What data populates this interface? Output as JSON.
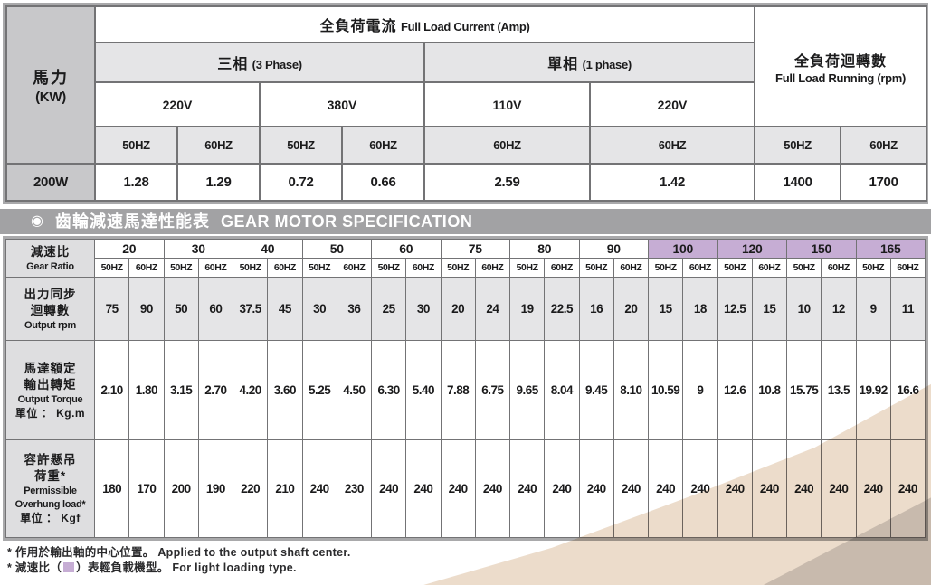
{
  "motor_table": {
    "power_label_zh": "馬力",
    "power_label_en": "(KW)",
    "full_load_current_zh": "全負荷電流",
    "full_load_current_en": "Full Load Current (Amp)",
    "three_phase_zh": "三相",
    "three_phase_en": "(3 Phase)",
    "single_phase_zh": "單相",
    "single_phase_en": "(1 phase)",
    "full_load_running_zh": "全負荷迴轉數",
    "full_load_running_en": "Full Load Running (rpm)",
    "voltage_220_3ph": "220V",
    "voltage_380_3ph": "380V",
    "voltage_110_1ph": "110V",
    "voltage_220_1ph": "220V",
    "hz": [
      "50HZ",
      "60HZ",
      "50HZ",
      "60HZ",
      "60HZ",
      "60HZ",
      "50HZ",
      "60HZ"
    ],
    "power_value": "200W",
    "values": [
      "1.28",
      "1.29",
      "0.72",
      "0.66",
      "2.59",
      "1.42",
      "1400",
      "1700"
    ]
  },
  "section_bar": {
    "bullet": "◉",
    "title_zh": "齒輪減速馬達性能表",
    "title_en": "GEAR MOTOR SPECIFICATION"
  },
  "gear_table": {
    "ratio_label_zh": "減速比",
    "ratio_label_en": "Gear Ratio",
    "hz_pair": [
      "50HZ",
      "60HZ"
    ],
    "ratios": [
      {
        "v": "20",
        "light": false
      },
      {
        "v": "30",
        "light": false
      },
      {
        "v": "40",
        "light": false
      },
      {
        "v": "50",
        "light": false
      },
      {
        "v": "60",
        "light": false
      },
      {
        "v": "75",
        "light": false
      },
      {
        "v": "80",
        "light": false
      },
      {
        "v": "90",
        "light": false
      },
      {
        "v": "100",
        "light": true
      },
      {
        "v": "120",
        "light": true
      },
      {
        "v": "150",
        "light": true
      },
      {
        "v": "165",
        "light": true
      }
    ],
    "rows": [
      {
        "id": "row-rpm",
        "shaded": true,
        "label": [
          {
            "t": "出力同步",
            "s": "lab-zh"
          },
          {
            "t": "迴轉數",
            "s": "lab-zh"
          },
          {
            "t": "Output rpm",
            "s": "lab-en"
          }
        ],
        "values": [
          "75",
          "90",
          "50",
          "60",
          "37.5",
          "45",
          "30",
          "36",
          "25",
          "30",
          "20",
          "24",
          "19",
          "22.5",
          "16",
          "20",
          "15",
          "18",
          "12.5",
          "15",
          "10",
          "12",
          "9",
          "11"
        ]
      },
      {
        "id": "row-torque",
        "shaded": false,
        "label": [
          {
            "t": "馬達額定",
            "s": "lab-zh"
          },
          {
            "t": "輸出轉矩",
            "s": "lab-zh"
          },
          {
            "t": "Output Torque",
            "s": "lab-en"
          },
          {
            "t": "單位 ： Kg.m",
            "s": "lab-unit"
          }
        ],
        "values": [
          "2.10",
          "1.80",
          "3.15",
          "2.70",
          "4.20",
          "3.60",
          "5.25",
          "4.50",
          "6.30",
          "5.40",
          "7.88",
          "6.75",
          "9.65",
          "8.04",
          "9.45",
          "8.10",
          "10.59",
          "9",
          "12.6",
          "10.8",
          "15.75",
          "13.5",
          "19.92",
          "16.6"
        ]
      },
      {
        "id": "row-overhung",
        "shaded": false,
        "label": [
          {
            "t": "容許懸吊",
            "s": "lab-zh"
          },
          {
            "t": "荷重*",
            "s": "lab-zh"
          },
          {
            "t": "Permissible",
            "s": "lab-en"
          },
          {
            "t": "Overhung load*",
            "s": "lab-en"
          },
          {
            "t": "單位 ： Kgf",
            "s": "lab-unit"
          }
        ],
        "values": [
          "180",
          "170",
          "200",
          "190",
          "220",
          "210",
          "240",
          "230",
          "240",
          "240",
          "240",
          "240",
          "240",
          "240",
          "240",
          "240",
          "240",
          "240",
          "240",
          "240",
          "240",
          "240",
          "240",
          "240"
        ]
      }
    ]
  },
  "footnotes": {
    "line1_zh": "* 作用於輸出軸的中心位置。",
    "line1_en": "Applied to the output shaft center.",
    "line2_pre": "* 減速比（",
    "line2_post": "）表輕負載機型。",
    "line2_en": "For light loading type."
  },
  "colors": {
    "accent_purple": "#c6add4",
    "bar_gray": "#a2a2a4",
    "label_gray": "#c8c8ca",
    "cell_light_gray": "#e5e5e7",
    "swoosh_beige": "#ecdccb",
    "corner_gray": "#d8d8da",
    "border_gray": "#737375"
  }
}
